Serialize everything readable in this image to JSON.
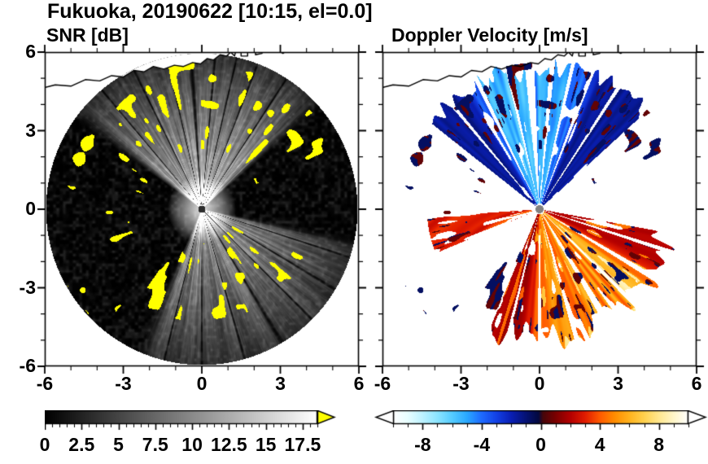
{
  "figure": {
    "title": "Fukuoka, 20190622 [10:15, el=0.0]",
    "station": "Fukuoka",
    "date": "20190622",
    "time": "10:15",
    "elevation_deg": "0.0"
  },
  "chart_data": [
    {
      "type": "heatmap",
      "subtype": "radar_ppi",
      "title": "SNR [dB]",
      "units": "dB",
      "axes": {
        "xlim": [
          -6,
          6
        ],
        "ylim": [
          -6,
          6
        ],
        "x_ticks": [
          -6,
          -3,
          0,
          3,
          6
        ],
        "y_ticks": [
          -6,
          -3,
          0,
          3,
          6
        ],
        "minor_step": 1,
        "y_tick_labels_visible": true
      },
      "colorbar": {
        "min": 0,
        "max": 18.5,
        "major_ticks": [
          0,
          2.5,
          5,
          7.5,
          10,
          12.5,
          15,
          17.5
        ],
        "minor_step": 0.5,
        "colormap": "grayscale",
        "over_color": "#ffff00",
        "over_arrow": true
      },
      "field": {
        "disk_radius": 5.95,
        "background_db": 0,
        "sectors": [
          {
            "az_start": -55,
            "az_end": 50,
            "peak_db": 20,
            "range_falloff": 7.0,
            "seed": 13.7
          },
          {
            "az_start": 100,
            "az_end": 205,
            "peak_db": 16,
            "range_falloff": 7.5,
            "seed": 77
          }
        ],
        "blocked_rays": [
          [
            -40,
            0.5
          ],
          [
            -26,
            0.6
          ],
          [
            -13,
            0.5
          ],
          [
            -4,
            1.3
          ],
          [
            5,
            0.7
          ],
          [
            13,
            0.5
          ],
          [
            21,
            0.6
          ],
          [
            33,
            0.5
          ],
          [
            108,
            0.6
          ],
          [
            121,
            0.8
          ],
          [
            135,
            0.6
          ],
          [
            149,
            1.1
          ],
          [
            164,
            0.7
          ],
          [
            180,
            0.6
          ],
          [
            194,
            0.5
          ]
        ],
        "clutter_bands": [
          {
            "az_start": -75,
            "az_end": 65,
            "r_min": 2.3,
            "r_max": 5.6,
            "threshold": 0.77,
            "seed": 11
          },
          {
            "az_start": 115,
            "az_end": 215,
            "r_min": 1.3,
            "r_max": 4.3,
            "threshold": 0.76,
            "seed": 23
          },
          {
            "az_start": -115,
            "az_end": -80,
            "r_min": 2.8,
            "r_max": 5.4,
            "threshold": 0.82,
            "seed": 37
          },
          {
            "az_start": -140,
            "az_end": -110,
            "r_min": 4.8,
            "r_max": 5.9,
            "threshold": 0.84,
            "seed": 51
          }
        ]
      }
    },
    {
      "type": "heatmap",
      "subtype": "radar_ppi",
      "title": "Doppler Velocity [m/s]",
      "units": "m/s",
      "axes": {
        "xlim": [
          -6,
          6
        ],
        "ylim": [
          -6,
          6
        ],
        "x_ticks": [
          -6,
          -3,
          0,
          3,
          6
        ],
        "y_ticks": [
          -6,
          -3,
          0,
          3,
          6
        ],
        "minor_step": 1,
        "y_tick_labels_visible": false
      },
      "colorbar": {
        "min": -10,
        "max": 10,
        "major_ticks": [
          -8,
          -4,
          0,
          4,
          8
        ],
        "minor_step": 1,
        "colormap": "velocity",
        "arrows": "both"
      },
      "field": {
        "disk_radius": 5.95,
        "approach_sector": {
          "az_start": -52,
          "az_end": 48,
          "v_range": [
            -8.5,
            -0.7
          ]
        },
        "recede_sector": {
          "az_start": 100,
          "az_end": 203,
          "v_range": [
            0.5,
            8.5
          ]
        },
        "west_streak": {
          "az_start": -113,
          "az_end": -94,
          "v_range": [
            2,
            5
          ]
        }
      }
    }
  ],
  "colormap_stops": {
    "grayscale": [
      [
        0,
        "#000000"
      ],
      [
        18.5,
        "#ffffff"
      ]
    ],
    "velocity": [
      [
        -10,
        "#ffffff"
      ],
      [
        -9,
        "#e8feff"
      ],
      [
        -8,
        "#bdf2ff"
      ],
      [
        -7,
        "#8ce5ff"
      ],
      [
        -6,
        "#55ccff"
      ],
      [
        -5,
        "#2aa9ff"
      ],
      [
        -4,
        "#1e6aff"
      ],
      [
        -3,
        "#1341e6"
      ],
      [
        -2,
        "#0a1fb4"
      ],
      [
        -1,
        "#051273"
      ],
      [
        -0.15,
        "#03093f"
      ],
      [
        0.15,
        "#46060a"
      ],
      [
        1,
        "#7a0000"
      ],
      [
        2,
        "#b30000"
      ],
      [
        3,
        "#e11c00"
      ],
      [
        4,
        "#ff5a00"
      ],
      [
        5,
        "#ff8d00"
      ],
      [
        6,
        "#ffb31e"
      ],
      [
        7,
        "#ffd14e"
      ],
      [
        8,
        "#ffe78f"
      ],
      [
        9,
        "#fff6c9"
      ],
      [
        10,
        "#ffffff"
      ]
    ]
  },
  "coastline": [
    [
      [
        -6.4,
        4.55
      ],
      [
        -5.6,
        4.75
      ],
      [
        -5.0,
        4.7
      ],
      [
        -4.45,
        4.95
      ],
      [
        -3.9,
        4.9
      ],
      [
        -3.45,
        5.1
      ],
      [
        -3.0,
        5.05
      ],
      [
        -2.6,
        5.3
      ],
      [
        -2.2,
        5.25
      ],
      [
        -1.85,
        5.45
      ],
      [
        -1.45,
        5.35
      ],
      [
        -1.05,
        5.5
      ],
      [
        -0.7,
        5.45
      ],
      [
        -0.35,
        5.6
      ],
      [
        -0.05,
        5.55
      ],
      [
        0.2,
        5.75
      ],
      [
        0.45,
        5.7
      ],
      [
        0.7,
        5.9
      ],
      [
        0.95,
        5.85
      ],
      [
        1.1,
        6.0
      ],
      [
        1.25,
        5.85
      ],
      [
        1.3,
        6.05
      ],
      [
        1.5,
        6.05
      ],
      [
        1.5,
        5.85
      ],
      [
        1.75,
        5.85
      ],
      [
        1.75,
        6.1
      ],
      [
        2.05,
        6.1
      ],
      [
        2.05,
        5.9
      ],
      [
        2.3,
        5.95
      ],
      [
        2.35,
        6.15
      ],
      [
        2.6,
        6.0
      ],
      [
        2.85,
        6.1
      ],
      [
        3.1,
        5.95
      ],
      [
        3.35,
        6.15
      ],
      [
        3.6,
        6.05
      ],
      [
        3.8,
        6.25
      ],
      [
        4.05,
        6.2
      ],
      [
        4.3,
        6.45
      ]
    ],
    [
      [
        4.55,
        6.15
      ],
      [
        4.85,
        6.3
      ],
      [
        5.15,
        6.2
      ],
      [
        5.45,
        6.4
      ]
    ]
  ]
}
